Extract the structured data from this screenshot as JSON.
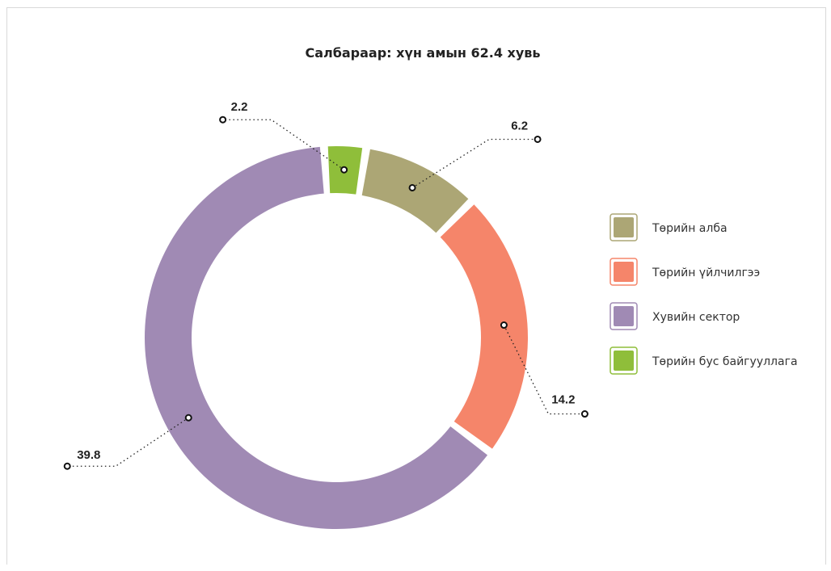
{
  "chart_data": {
    "type": "pie",
    "title": "Салбараар: хүн амын 62.4 хувь",
    "categories": [
      "Төрийн алба",
      "Төрийн үйлчилгээ",
      "Хувийн сектор",
      "Төрийн бус байгууллага"
    ],
    "values": [
      6.2,
      14.2,
      39.8,
      2.2
    ],
    "value_labels": [
      "6.2",
      "14.2",
      "39.8",
      "2.2"
    ],
    "colors": [
      "#aca675",
      "#f5856a",
      "#a08ab4",
      "#8fbe3a"
    ],
    "legend_position": "right",
    "style": "donut"
  }
}
